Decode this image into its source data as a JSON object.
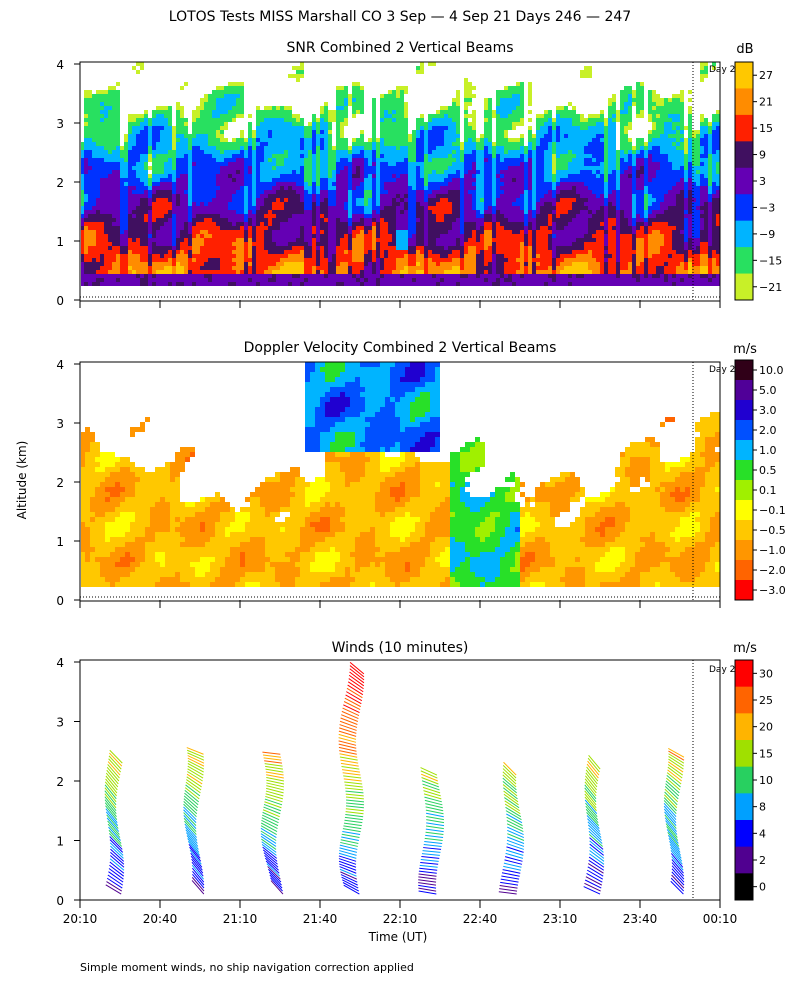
{
  "figure_title": "LOTOS Tests MISS Marshall CO   3 Sep —  4 Sep 21 Days 246 — 247",
  "footnote": "Simple moment winds, no ship navigation correction applied",
  "day_marker_label": "Day 2",
  "chart_data": [
    {
      "type": "heatmap",
      "title": "SNR Combined 2 Vertical Beams",
      "xlabel": "",
      "ylabel": "",
      "units": "dB",
      "ylim": [
        0,
        4
      ],
      "yticks": [
        "0",
        "1",
        "2",
        "3",
        "4"
      ],
      "xlim_minutes": [
        0,
        240
      ],
      "colorbar": {
        "labels": [
          "27",
          "21",
          "15",
          "9",
          "3",
          "−3",
          "−9",
          "−15",
          "−21"
        ],
        "colors": [
          "#ffc800",
          "#ff8c00",
          "#ff2000",
          "#401060",
          "#6400b4",
          "#0032ff",
          "#00b4ff",
          "#28e060",
          "#c8f028"
        ]
      }
    },
    {
      "type": "heatmap",
      "title": "Doppler Velocity Combined 2 Vertical Beams",
      "xlabel": "",
      "ylabel": "Altitude (km)",
      "units": "m/s",
      "ylim": [
        0,
        4
      ],
      "yticks": [
        "0",
        "1",
        "2",
        "3",
        "4"
      ],
      "xlim_minutes": [
        0,
        240
      ],
      "colorbar": {
        "labels": [
          "10.0",
          "5.0",
          "3.0",
          "2.0",
          "1.0",
          "0.5",
          "0.1",
          "−0.1",
          "−0.5",
          "−1.0",
          "−2.0",
          "−3.0"
        ],
        "colors": [
          "#300018",
          "#500098",
          "#2000d0",
          "#0050ff",
          "#00b4ff",
          "#28e028",
          "#a0f000",
          "#ffff00",
          "#ffc800",
          "#ff9600",
          "#ff6400",
          "#ff0000"
        ]
      }
    },
    {
      "type": "scatter",
      "title": "Winds (10 minutes)",
      "xlabel": "Time (UT)",
      "ylabel": "",
      "units": "m/s",
      "ylim": [
        0,
        4
      ],
      "yticks": [
        "0",
        "1",
        "2",
        "3",
        "4"
      ],
      "xlim_minutes": [
        0,
        240
      ],
      "xticks": [
        "20:10",
        "20:40",
        "21:10",
        "21:40",
        "22:10",
        "22:40",
        "23:10",
        "23:40",
        "00:10"
      ],
      "profile_times_minutes": [
        15,
        45,
        75,
        105,
        135,
        165,
        195,
        225
      ],
      "colorbar": {
        "labels": [
          "30",
          "25",
          "20",
          "15",
          "10",
          "8",
          "4",
          "2",
          "0"
        ],
        "colors": [
          "#ff0000",
          "#ff6400",
          "#ffb400",
          "#a0e000",
          "#28d060",
          "#00a0ff",
          "#0000ff",
          "#500090",
          "#000000"
        ]
      }
    }
  ]
}
